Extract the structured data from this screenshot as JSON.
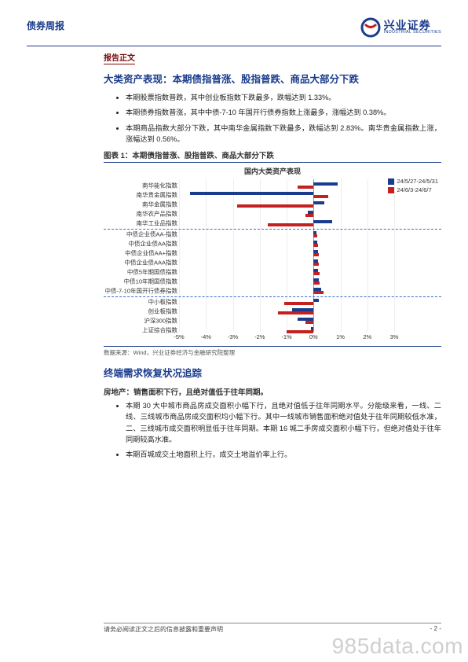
{
  "header": {
    "left": "债券周报",
    "brand_cn": "兴业证券",
    "brand_en": "INDUSTRIAL SECURITIES"
  },
  "tag": "报告正文",
  "h1": "大类资产表现：本期债指普涨、股指普跌、商品大部分下跌",
  "bullets_a": [
    "本期股票指数普跌，其中创业板指数下跌最多，跌幅达到 1.33%。",
    "本期债券指数普涨，其中中债-7-10 年国开行债券指数上涨最多，涨幅达到 0.38%。",
    "本期商品指数大部分下跌，其中南华金属指数下跌最多，跌幅达到 2.83%。南华贵金属指数上涨，涨幅达到 0.56%。"
  ],
  "chart": {
    "caption": "图表 1：本期债指普涨、股指普跌、商品大部分下跌",
    "title": "国内大类资产表现",
    "legend": [
      {
        "label": "24/5/27-24/5/31",
        "color": "#1a3c8c"
      },
      {
        "label": "24/6/3-24/6/7",
        "color": "#c3201f"
      }
    ],
    "xmin": -5,
    "xmax": 3,
    "xstep": 1,
    "xticks": [
      "-5%",
      "-4%",
      "-3%",
      "-2%",
      "-1%",
      "0%",
      "1%",
      "2%",
      "3%"
    ],
    "colors": {
      "a": "#1a3c8c",
      "b": "#c3201f",
      "sep": "#3a6fc8",
      "grid": "#eeeeee",
      "zero": "#999999"
    },
    "groups": [
      {
        "rows": [
          {
            "label": "南华能化指数",
            "a": 0.9,
            "b": -0.6
          },
          {
            "label": "南华贵金属指数",
            "a": -4.6,
            "b": 0.56
          },
          {
            "label": "南华金属指数",
            "a": 0.4,
            "b": -2.83
          },
          {
            "label": "南华农产品指数",
            "a": -0.2,
            "b": -0.3
          },
          {
            "label": "南华工业品指数",
            "a": 0.7,
            "b": -1.7
          }
        ]
      },
      {
        "rows": [
          {
            "label": "中债企业债AA-指数",
            "a": 0.12,
            "b": 0.15
          },
          {
            "label": "中债企业债AA指数",
            "a": 0.15,
            "b": 0.18
          },
          {
            "label": "中债企业债AA+指数",
            "a": 0.17,
            "b": 0.19
          },
          {
            "label": "中债企业债AAA指数",
            "a": 0.18,
            "b": 0.2
          },
          {
            "label": "中债5年期国债指数",
            "a": 0.16,
            "b": 0.22
          },
          {
            "label": "中债10年期国债指数",
            "a": 0.2,
            "b": 0.24
          },
          {
            "label": "中债-7-10年国开行债券指数",
            "a": 0.28,
            "b": 0.38
          }
        ]
      },
      {
        "rows": [
          {
            "label": "中小板指数",
            "a": 0.2,
            "b": -1.1
          },
          {
            "label": "创业板指数",
            "a": -0.8,
            "b": -1.33
          },
          {
            "label": "沪深300指数",
            "a": -0.6,
            "b": -0.3
          },
          {
            "label": "上证综合指数",
            "a": -0.1,
            "b": -1.0
          }
        ]
      }
    ],
    "source": "数据来源：Wind，兴业证券经济与金融研究院整理"
  },
  "h2": "终端需求恢复状况追踪",
  "sub2": "房地产：销售面积下行，且绝对值低于往年同期。",
  "bullets_b": [
    "本期 30 大中城市商品房成交面积小幅下行，且绝对值低于往年同期水平。分能级来看，一线、二线、三线城市商品房成交面积均小幅下行。其中一线城市销售面积绝对值处于往年同期较低水准，二、三线城市成交面积明显低于往年同期。本期 16 城二手房成交面积小幅下行，但绝对值处于往年同期较高水准。",
    "本期百城成交土地面积上行，成交土地溢价率上行。"
  ],
  "footer": {
    "disclaimer": "请务必阅读正文之后的信息披露和重要声明",
    "pageno": "- 2 -"
  },
  "watermark": "985data.com"
}
